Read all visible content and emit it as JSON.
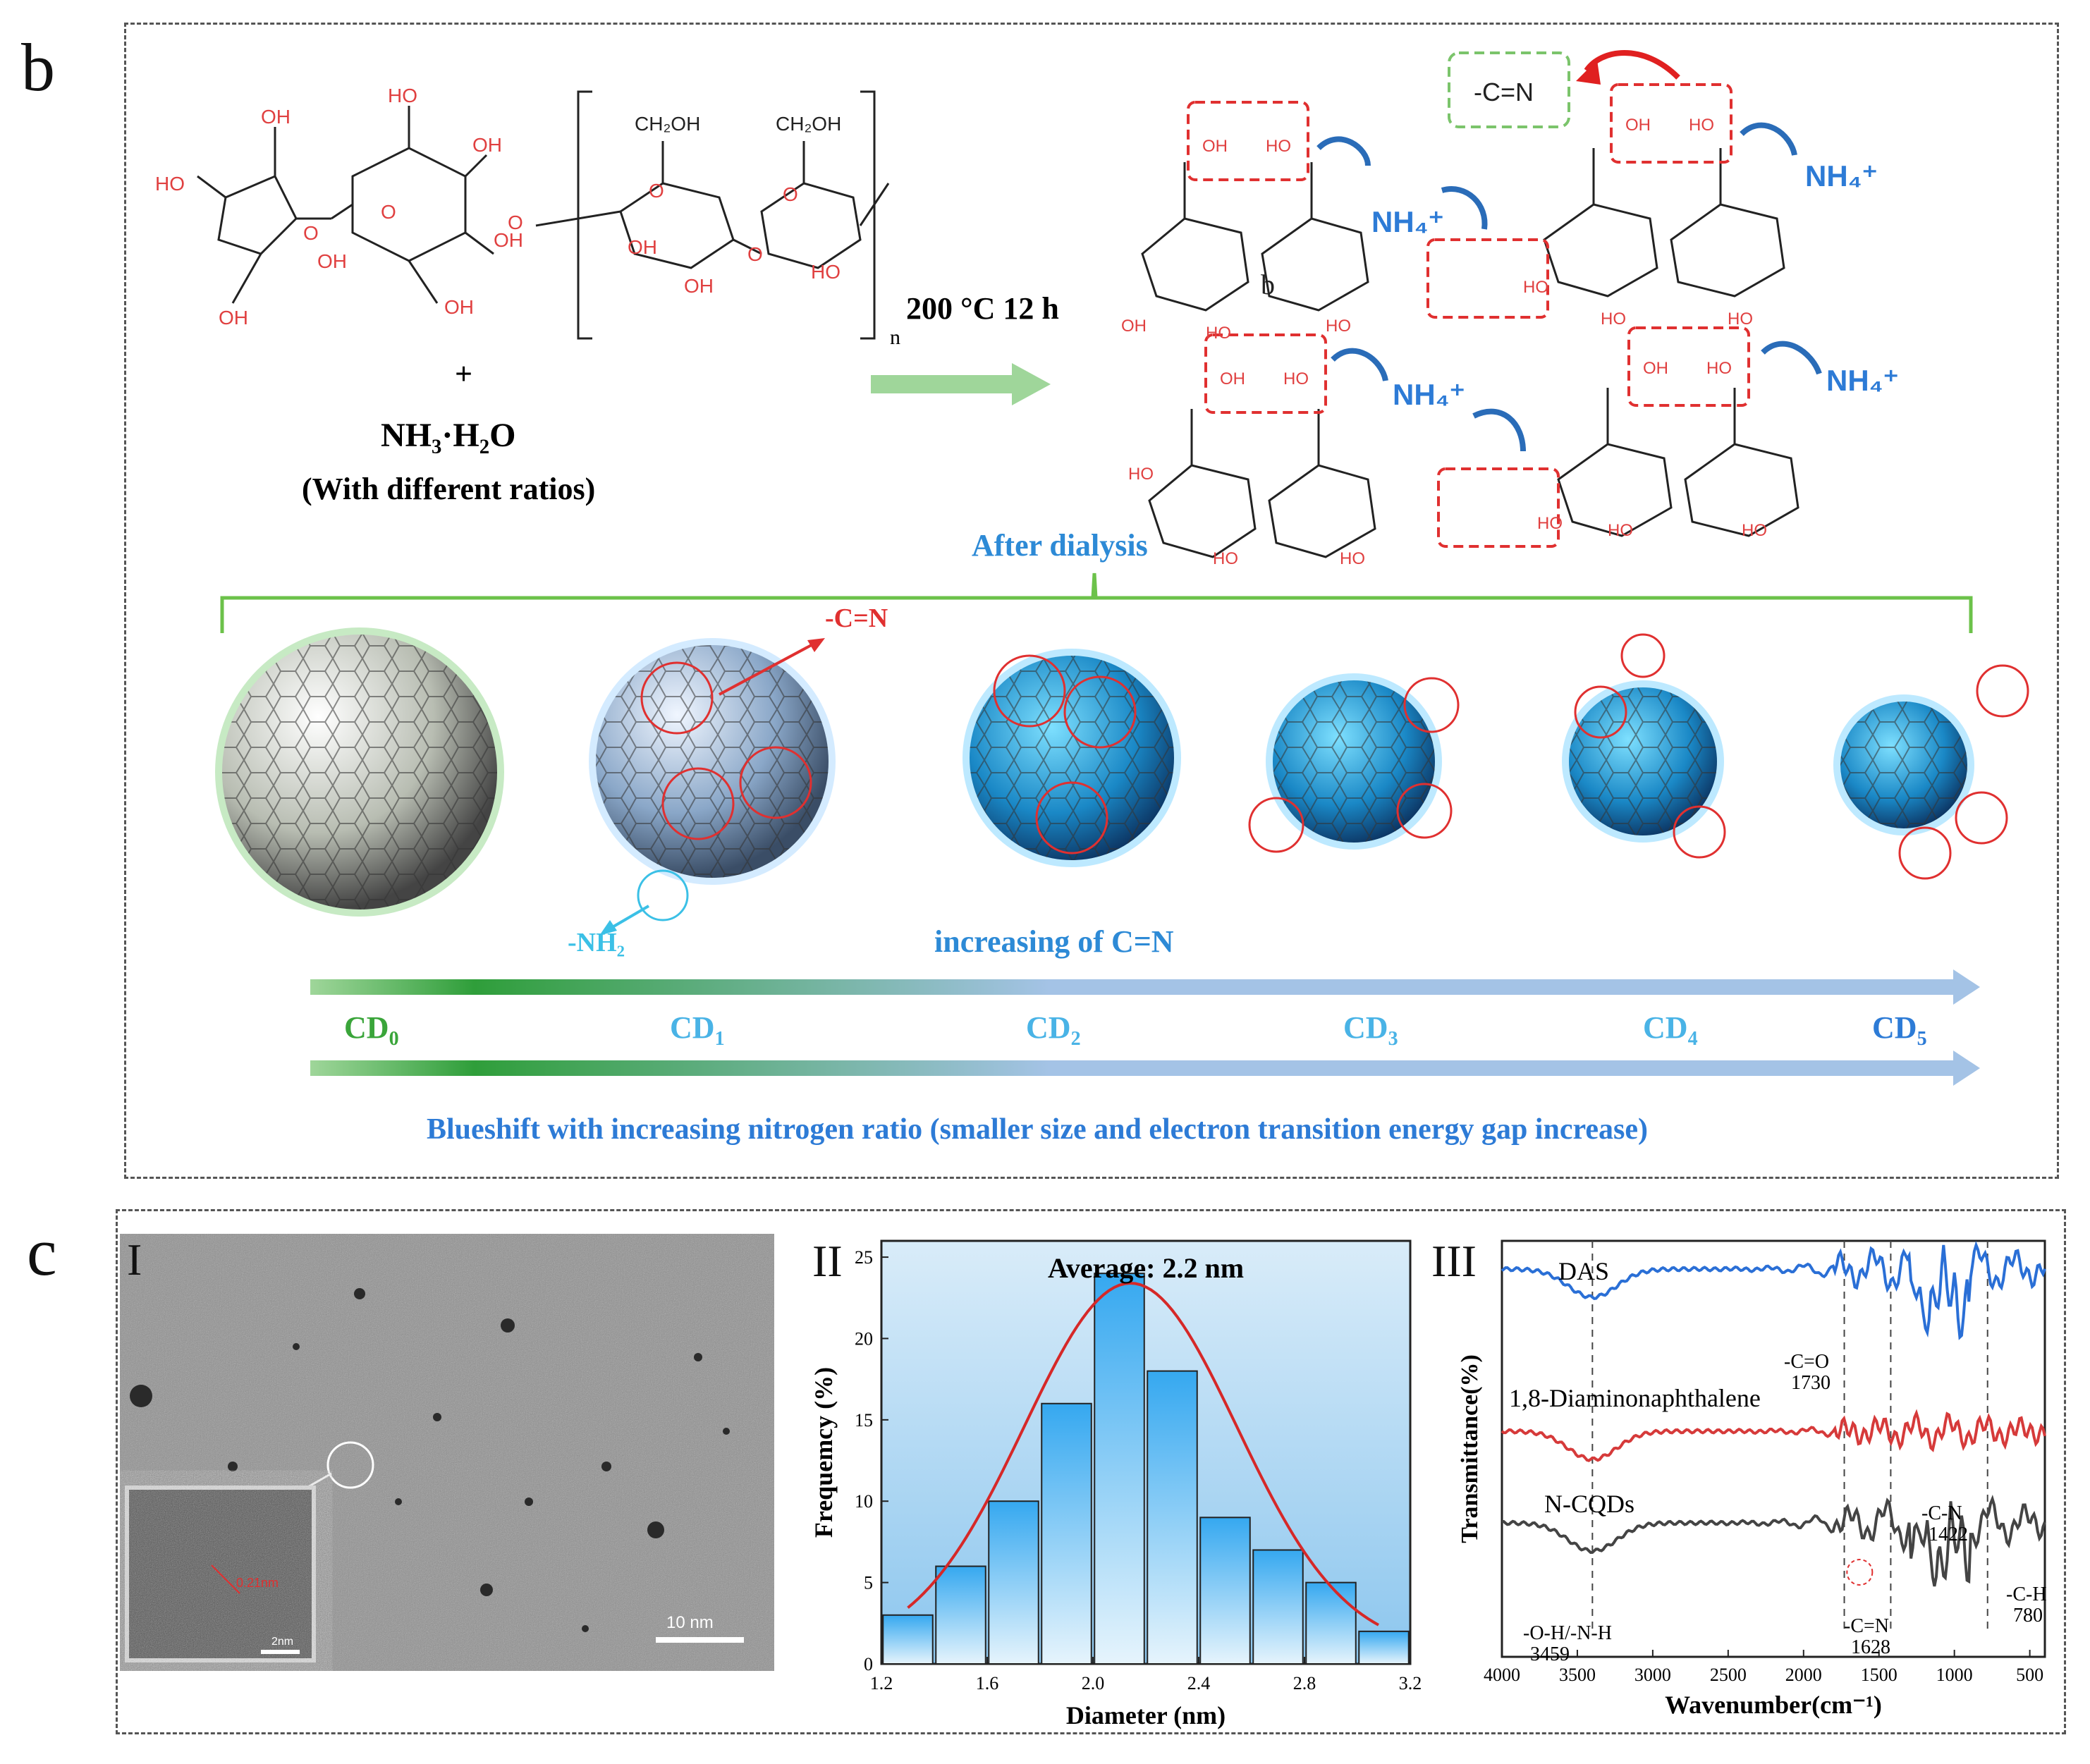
{
  "panel_b": {
    "letter": "b",
    "reactants": {
      "plus": "+",
      "reagent": "NH₃·H₂O",
      "note": "(With different ratios)",
      "n": "n"
    },
    "condition": "200 °C 12 h",
    "cn_box": "-C=N",
    "nh4": "NH₄⁺",
    "b_label": "b",
    "after_dialysis": "After dialysis",
    "cn_pointer": "-C=N",
    "nh2_pointer": "-NH₂",
    "increasing_cn": "increasing of C=N",
    "cd_labels": [
      {
        "text": "CD",
        "sub": "0",
        "color": "#3aa53a"
      },
      {
        "text": "CD",
        "sub": "1",
        "color": "#49b3e6"
      },
      {
        "text": "CD",
        "sub": "2",
        "color": "#49b3e6"
      },
      {
        "text": "CD",
        "sub": "3",
        "color": "#49b3e6"
      },
      {
        "text": "CD",
        "sub": "4",
        "color": "#49b3e6"
      },
      {
        "text": "CD",
        "sub": "5",
        "color": "#2d7bd6"
      }
    ],
    "blueshift": "Blueshift with increasing nitrogen ratio  (smaller size and electron transition energy gap increase)"
  },
  "panel_c": {
    "letter": "c",
    "tem": {
      "roman": "I",
      "scale": "10 nm",
      "inset_label": "0.21nm",
      "inset_scale": "2nm"
    },
    "hist": {
      "roman": "II",
      "title": "Average: 2.2 nm"
    },
    "ftir": {
      "roman": "III",
      "title": "",
      "xlabel": "Wavenumber(cm⁻¹)",
      "ylabel": "Transmittance(%)",
      "xticks": [
        "4000",
        "3500",
        "3000",
        "2500",
        "2000",
        "1500",
        "1000",
        "500"
      ],
      "series_labels": [
        "DAS",
        "1,8-Diaminonaphthalene",
        "N-CQDs"
      ],
      "annotations": [
        {
          "text": "-C=O",
          "sub": "1730"
        },
        {
          "text": "-C-N",
          "sub": "1422"
        },
        {
          "text": "-C-H",
          "sub": "780"
        },
        {
          "text": "-C=N",
          "sub": "1628"
        },
        {
          "text": "-O-H/-N-H",
          "sub": "3459"
        }
      ],
      "colors": [
        "#2a6fd6",
        "#d63a3a",
        "#444444"
      ]
    }
  },
  "chart_data": {
    "type": "bar",
    "title": "Average: 2.2 nm",
    "xlabel": "Diameter (nm)",
    "ylabel": "Frequemcy (%)",
    "x": [
      1.3,
      1.5,
      1.7,
      1.9,
      2.1,
      2.3,
      2.5,
      2.7,
      2.9,
      3.1
    ],
    "values": [
      3,
      6,
      10,
      16,
      24,
      18,
      9,
      7,
      5,
      2
    ],
    "xlim": [
      1.2,
      3.2
    ],
    "ylim": [
      0,
      26
    ],
    "xticks": [
      "1.2",
      "1.6",
      "2.0",
      "2.4",
      "2.8",
      "3.2"
    ],
    "yticks": [
      "0",
      "5",
      "10",
      "15",
      "20",
      "25"
    ],
    "fit": {
      "type": "gaussian",
      "color": "#d62828"
    },
    "bar_color": "#2b9be0",
    "grid": false
  }
}
